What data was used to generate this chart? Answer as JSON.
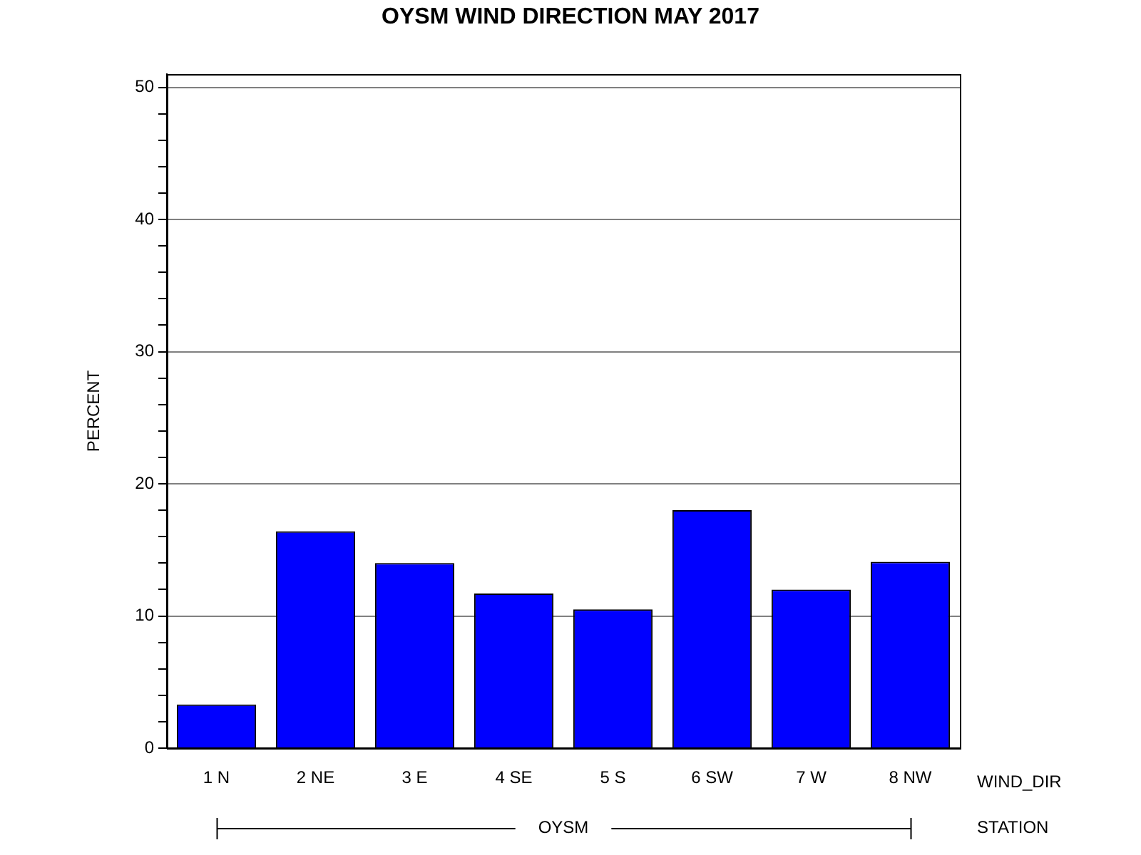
{
  "chart_data": {
    "type": "bar",
    "title": "OYSM WIND DIRECTION MAY 2017",
    "categories": [
      "1 N",
      "2 NE",
      "3 E",
      "4 SE",
      "5 S",
      "6 SW",
      "7 W",
      "8 NW"
    ],
    "values": [
      3.3,
      16.4,
      14.0,
      11.7,
      10.5,
      18.0,
      12.0,
      14.1
    ],
    "color": "#0000ff",
    "xlabel": "WIND_DIR",
    "ylabel": "PERCENT",
    "annotations": [
      "STATION",
      "OYSM"
    ],
    "ylim": [
      0,
      51
    ],
    "yticks": [
      0,
      {
        "value": 2,
        "label": null
      },
      {
        "value": 4,
        "label": null
      },
      {
        "value": 6,
        "label": null
      },
      {
        "value": 8,
        "label": null
      },
      10,
      {
        "value": 12,
        "label": null
      },
      {
        "value": 14,
        "label": null
      },
      {
        "value": 16,
        "label": null
      },
      {
        "value": 18,
        "label": null
      },
      20,
      {
        "value": 22,
        "label": null
      },
      {
        "value": 24,
        "label": null
      },
      {
        "value": 26,
        "label": null
      },
      {
        "value": 28,
        "label": null
      },
      30,
      {
        "value": 32,
        "label": null
      },
      {
        "value": 34,
        "label": null
      },
      {
        "value": 36,
        "label": null
      },
      {
        "value": 38,
        "label": null
      },
      40,
      {
        "value": 42,
        "label": null
      },
      {
        "value": 44,
        "label": null
      },
      {
        "value": 46,
        "label": null
      },
      {
        "value": 48,
        "label": null
      },
      50
    ],
    "grid": "y",
    "legend": false
  }
}
